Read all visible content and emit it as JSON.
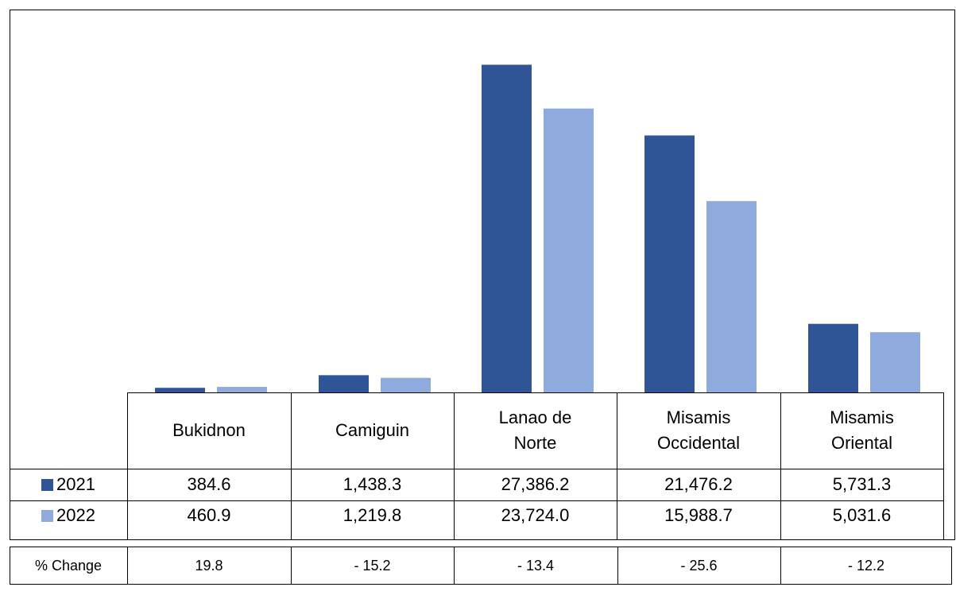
{
  "chart_data": {
    "type": "bar",
    "categories": [
      "Bukidnon",
      "Camiguin",
      "Lanao de Norte",
      "Misamis Occidental",
      "Misamis Oriental"
    ],
    "series": [
      {
        "name": "2021",
        "color": "#2f5597",
        "values": [
          384.6,
          1438.3,
          27386.2,
          21476.2,
          5731.3
        ],
        "value_labels": [
          "384.6",
          "1,438.3",
          "27,386.2",
          "21,476.2",
          "5,731.3"
        ]
      },
      {
        "name": "2022",
        "color": "#8faadc",
        "values": [
          460.9,
          1219.8,
          23724.0,
          15988.7,
          5031.6
        ],
        "value_labels": [
          "460.9",
          "1,219.8",
          "23,724.0",
          "15,988.7",
          "5,031.6"
        ]
      }
    ],
    "ylim": [
      0,
      32000
    ]
  },
  "change_table": {
    "label": "% Change",
    "values": [
      19.8,
      -15.2,
      -13.4,
      -25.6,
      -12.2
    ],
    "value_labels": [
      "19.8",
      "- 15.2",
      "- 13.4",
      "- 25.6",
      "- 12.2"
    ]
  }
}
